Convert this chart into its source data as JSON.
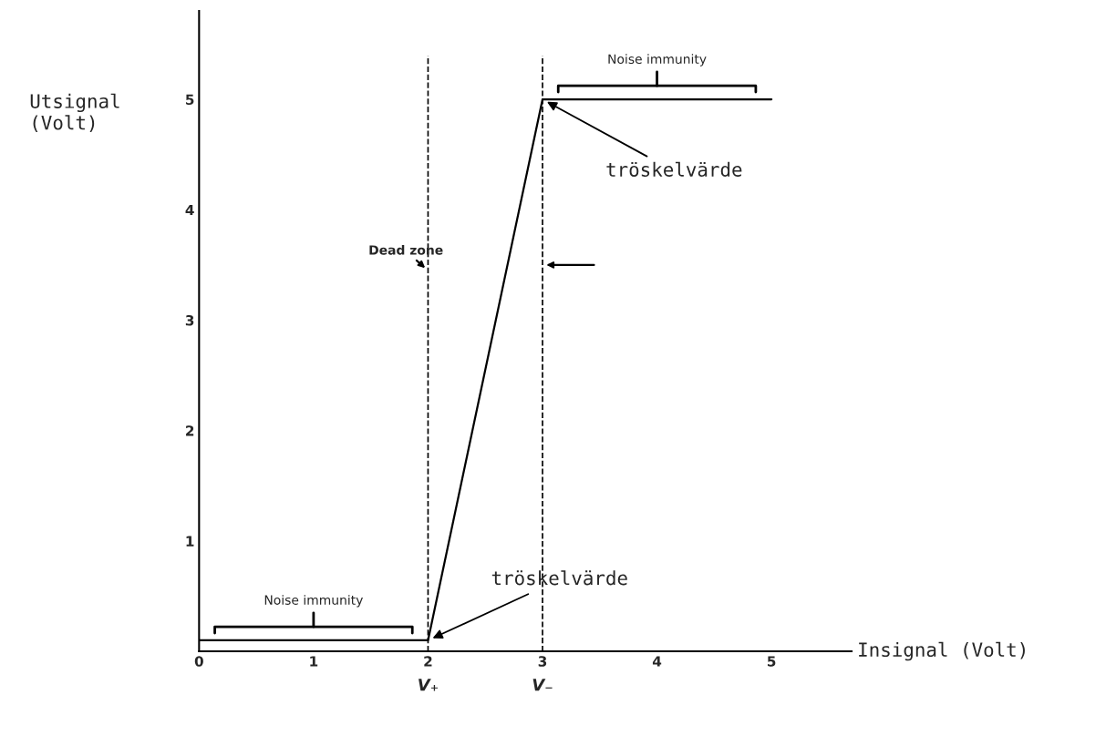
{
  "chart_data": {
    "type": "line",
    "xlabel": "Insignal (Volt)",
    "ylabel": "Utsignal\n(Volt)",
    "x": [
      0,
      2,
      3,
      5
    ],
    "series": [
      {
        "color": "#000000",
        "values": [
          0.1,
          0.1,
          5,
          5
        ]
      }
    ],
    "xlim": [
      0,
      5.7
    ],
    "ylim": [
      0,
      5.8
    ],
    "xticks": [
      0,
      1,
      2,
      3,
      4,
      5
    ],
    "yticks": [
      1,
      2,
      3,
      4,
      5
    ],
    "grid": false,
    "marker": "none",
    "line_style": "solid",
    "ref_lines": [
      {
        "axis": "x",
        "value": 2,
        "label": "V₊",
        "line_style": "dashed",
        "color": "#000000"
      },
      {
        "axis": "x",
        "value": 3,
        "label": "V₋",
        "line_style": "dashed",
        "color": "#000000"
      }
    ],
    "annotations": [
      {
        "text": "Dead zone",
        "x": 2,
        "y": 3.45
      },
      {
        "text": "Noise immunity",
        "x": 1,
        "y": 0.1
      },
      {
        "text": "Noise immunity",
        "x": 4,
        "y": 5
      },
      {
        "text": "tröskelvärde",
        "x": 2,
        "y": 0.1
      },
      {
        "text": "tröskelvärde",
        "x": 3,
        "y": 5
      }
    ]
  }
}
